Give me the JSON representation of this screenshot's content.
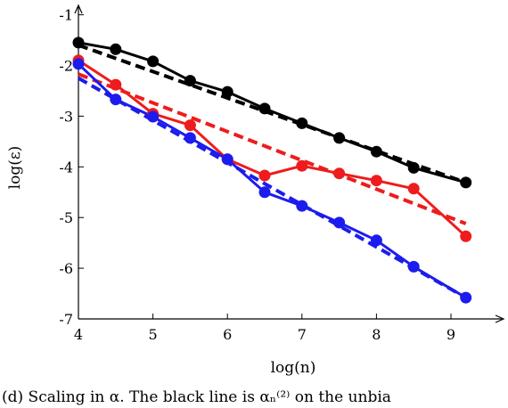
{
  "chart_data": {
    "type": "line",
    "xlabel": "log(n)",
    "ylabel": "log(ε)",
    "xlim": [
      4,
      9.4
    ],
    "ylim": [
      -7,
      -0.8
    ],
    "xticks": [
      4,
      5,
      6,
      7,
      8,
      9
    ],
    "yticks": [
      -7,
      -6,
      -5,
      -4,
      -3,
      -2,
      -1
    ],
    "grid": false,
    "legend": "none",
    "series": [
      {
        "color": "#000000",
        "style": "solid-markers",
        "x": [
          4,
          4.5,
          5,
          5.5,
          6,
          6.5,
          7,
          7.5,
          8,
          8.5,
          9.2
        ],
        "y": [
          -1.55,
          -1.68,
          -1.92,
          -2.3,
          -2.52,
          -2.85,
          -3.14,
          -3.43,
          -3.7,
          -4.02,
          -4.31
        ]
      },
      {
        "color": "#000000",
        "style": "dashed",
        "x": [
          4,
          9.2
        ],
        "y": [
          -1.6,
          -4.31
        ]
      },
      {
        "color": "#ee1c1c",
        "style": "solid-markers",
        "x": [
          4,
          4.5,
          5,
          5.5,
          6,
          6.5,
          7,
          7.5,
          8,
          8.5,
          9.2
        ],
        "y": [
          -1.9,
          -2.38,
          -2.95,
          -3.18,
          -3.85,
          -4.17,
          -3.98,
          -4.13,
          -4.27,
          -4.43,
          -5.37
        ]
      },
      {
        "color": "#ee1c1c",
        "style": "dashed",
        "x": [
          4,
          9.2
        ],
        "y": [
          -2.17,
          -5.12
        ]
      },
      {
        "color": "#1c1cee",
        "style": "solid-markers",
        "x": [
          4,
          4.5,
          5,
          5.5,
          6,
          6.5,
          7,
          7.5,
          8,
          8.5,
          9.2
        ],
        "y": [
          -1.97,
          -2.67,
          -3.01,
          -3.43,
          -3.85,
          -4.5,
          -4.77,
          -5.1,
          -5.45,
          -5.97,
          -6.58
        ]
      },
      {
        "color": "#1c1cee",
        "style": "dashed",
        "x": [
          4,
          9.2
        ],
        "y": [
          -2.25,
          -6.58
        ]
      }
    ]
  },
  "caption": "(d) Scaling in α. The black line is αₙ⁽²⁾ on the unbia"
}
